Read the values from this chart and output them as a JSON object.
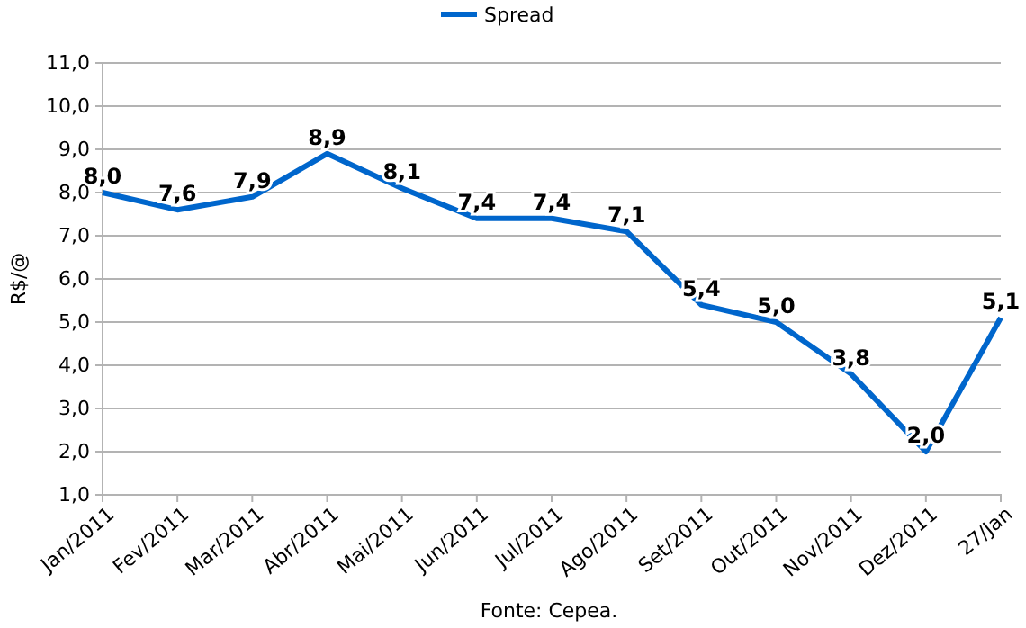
{
  "chart_data": {
    "type": "line",
    "ylabel": "R$/@",
    "categories": [
      "Jan/2011",
      "Fev/2011",
      "Mar/2011",
      "Abr/2011",
      "Mai/2011",
      "Jun/2011",
      "Jul/2011",
      "Ago/2011",
      "Set/2011",
      "Out/2011",
      "Nov/2011",
      "Dez/2011",
      "27/Jan"
    ],
    "series": [
      {
        "name": "Spread",
        "color": "#0066cc",
        "values": [
          8.0,
          7.6,
          7.9,
          8.9,
          8.1,
          7.4,
          7.4,
          7.1,
          5.4,
          5.0,
          3.8,
          2.0,
          5.1
        ],
        "value_labels": [
          "8,0",
          "7,6",
          "7,9",
          "8,9",
          "8,1",
          "7,4",
          "7,4",
          "7,1",
          "5,4",
          "5,0",
          "3,8",
          "2,0",
          "5,1"
        ]
      }
    ],
    "ylim": [
      1,
      11
    ],
    "yticks": [
      {
        "value": 1,
        "label": "1,0"
      },
      {
        "value": 2,
        "label": "2,0"
      },
      {
        "value": 3,
        "label": "3,0"
      },
      {
        "value": 4,
        "label": "4,0"
      },
      {
        "value": 5,
        "label": "5,0"
      },
      {
        "value": 6,
        "label": "6,0"
      },
      {
        "value": 7,
        "label": "7,0"
      },
      {
        "value": 8,
        "label": "8,0"
      },
      {
        "value": 9,
        "label": "9,0"
      },
      {
        "value": 10,
        "label": "10,0"
      },
      {
        "value": 11,
        "label": "11,0"
      }
    ],
    "grid": "y",
    "legend": "top",
    "marker": "none",
    "line_style": "solid",
    "annotations": [
      "Fonte: Cepea."
    ]
  }
}
